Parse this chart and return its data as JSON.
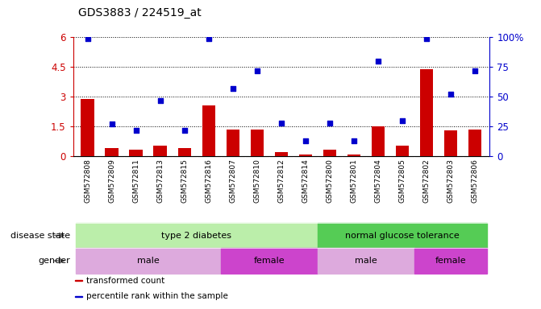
{
  "title": "GDS3883 / 224519_at",
  "samples": [
    "GSM572808",
    "GSM572809",
    "GSM572811",
    "GSM572813",
    "GSM572815",
    "GSM572816",
    "GSM572807",
    "GSM572810",
    "GSM572812",
    "GSM572814",
    "GSM572800",
    "GSM572801",
    "GSM572804",
    "GSM572805",
    "GSM572802",
    "GSM572803",
    "GSM572806"
  ],
  "bar_values": [
    2.9,
    0.4,
    0.35,
    0.55,
    0.4,
    2.55,
    1.35,
    1.35,
    0.22,
    0.08,
    0.35,
    0.08,
    1.5,
    0.55,
    4.4,
    1.3,
    1.35
  ],
  "dot_values": [
    99,
    27,
    22,
    47,
    22,
    99,
    57,
    72,
    28,
    13,
    28,
    13,
    80,
    30,
    99,
    52,
    72
  ],
  "bar_color": "#cc0000",
  "dot_color": "#0000cc",
  "ylim_left": [
    0,
    6
  ],
  "ylim_right": [
    0,
    100
  ],
  "yticks_left": [
    0,
    1.5,
    3.0,
    4.5,
    6.0
  ],
  "ytick_labels_left": [
    "0",
    "1.5",
    "3",
    "4.5",
    "6"
  ],
  "yticks_right": [
    0,
    25,
    50,
    75,
    100
  ],
  "ytick_labels_right": [
    "0",
    "25",
    "50",
    "75",
    "100%"
  ],
  "disease_state": [
    {
      "label": "type 2 diabetes",
      "start": 0,
      "end": 10,
      "color": "#bbeeaa"
    },
    {
      "label": "normal glucose tolerance",
      "start": 10,
      "end": 17,
      "color": "#55cc55"
    }
  ],
  "gender": [
    {
      "label": "male",
      "start": 0,
      "end": 6,
      "color": "#ddaadd"
    },
    {
      "label": "female",
      "start": 6,
      "end": 10,
      "color": "#cc44cc"
    },
    {
      "label": "male",
      "start": 10,
      "end": 14,
      "color": "#ddaadd"
    },
    {
      "label": "female",
      "start": 14,
      "end": 17,
      "color": "#cc44cc"
    }
  ],
  "legend_items": [
    {
      "label": "transformed count",
      "color": "#cc0000"
    },
    {
      "label": "percentile rank within the sample",
      "color": "#0000cc"
    }
  ],
  "left_axis_color": "#cc0000",
  "right_axis_color": "#0000cc",
  "background_color": "#ffffff",
  "tick_bg_color": "#d8d8d8",
  "label_left_disease": "disease state",
  "label_left_gender": "gender"
}
